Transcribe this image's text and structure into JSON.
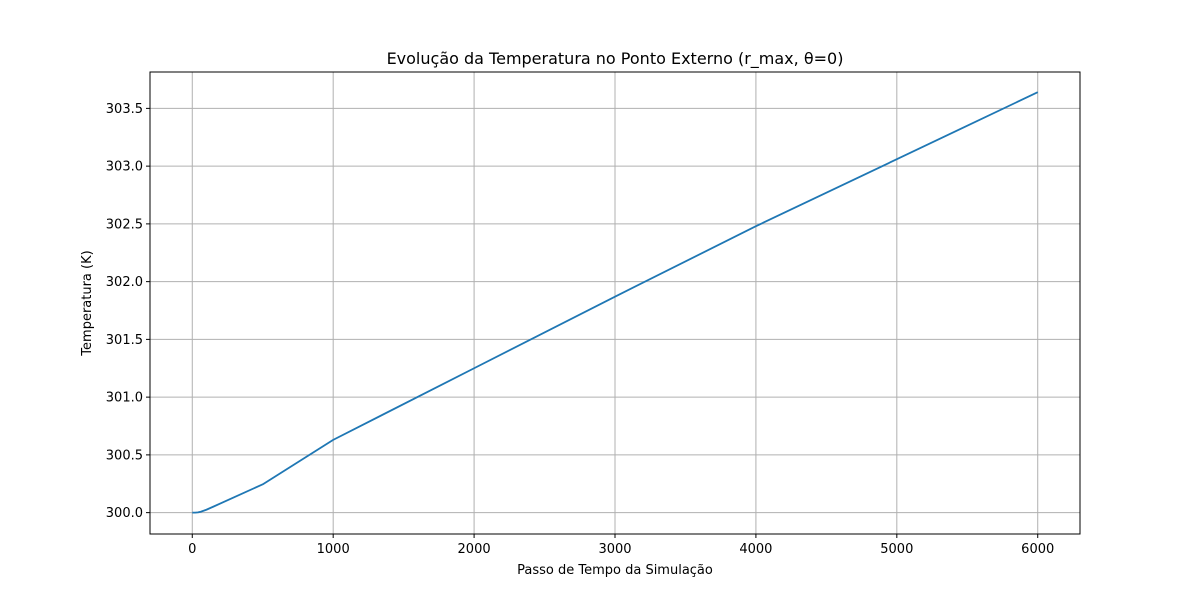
{
  "chart_data": {
    "type": "line",
    "title": "Evolução da Temperatura no Ponto Externo (r_max, θ=0)",
    "xlabel": "Passo de Tempo da Simulação",
    "ylabel": "Temperatura (K)",
    "xlim": [
      -300,
      6300
    ],
    "ylim": [
      299.815,
      303.815
    ],
    "xticks": [
      0,
      1000,
      2000,
      3000,
      4000,
      5000,
      6000
    ],
    "xtick_labels": [
      "0",
      "1000",
      "2000",
      "3000",
      "4000",
      "5000",
      "6000"
    ],
    "yticks": [
      300.0,
      300.5,
      301.0,
      301.5,
      302.0,
      302.5,
      303.0,
      303.5
    ],
    "ytick_labels": [
      "300.0",
      "300.5",
      "301.0",
      "301.5",
      "302.0",
      "302.5",
      "303.0",
      "303.5"
    ],
    "grid": true,
    "series": [
      {
        "color": "#1f77b4",
        "x": [
          0,
          20,
          40,
          60,
          80,
          100,
          150,
          200,
          300,
          500,
          1000,
          2000,
          3000,
          4000,
          5000,
          6000
        ],
        "y": [
          300.0,
          300.0,
          300.002,
          300.008,
          300.016,
          300.025,
          300.052,
          300.08,
          300.135,
          300.245,
          300.63,
          301.25,
          301.87,
          302.48,
          303.06,
          303.64
        ]
      }
    ]
  }
}
